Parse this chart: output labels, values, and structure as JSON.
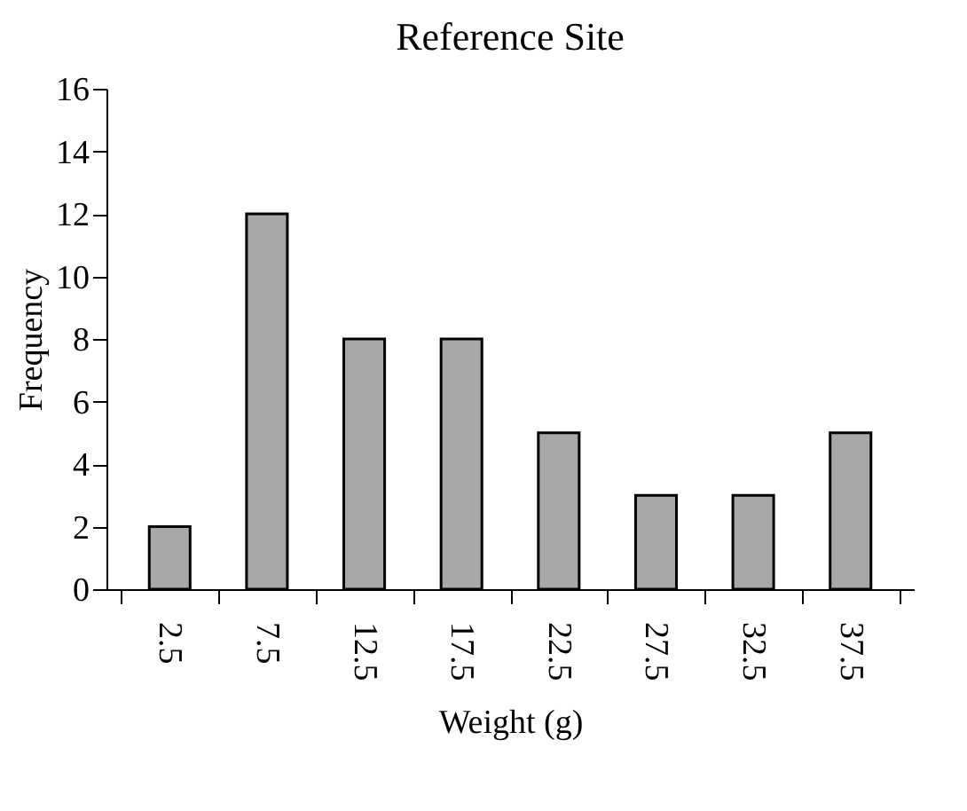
{
  "chart_data": {
    "type": "bar",
    "title": "Reference Site",
    "xlabel": "Weight (g)",
    "ylabel": "Frequency",
    "categories": [
      "2.5",
      "7.5",
      "12.5",
      "17.5",
      "22.5",
      "27.5",
      "32.5",
      "37.5"
    ],
    "values": [
      2,
      12,
      8,
      8,
      5,
      3,
      3,
      5
    ],
    "color": "#a8a8a8",
    "ylim": [
      0,
      16
    ],
    "yticks": [
      0,
      2,
      4,
      6,
      8,
      10,
      12,
      14,
      16
    ],
    "grid": false
  }
}
